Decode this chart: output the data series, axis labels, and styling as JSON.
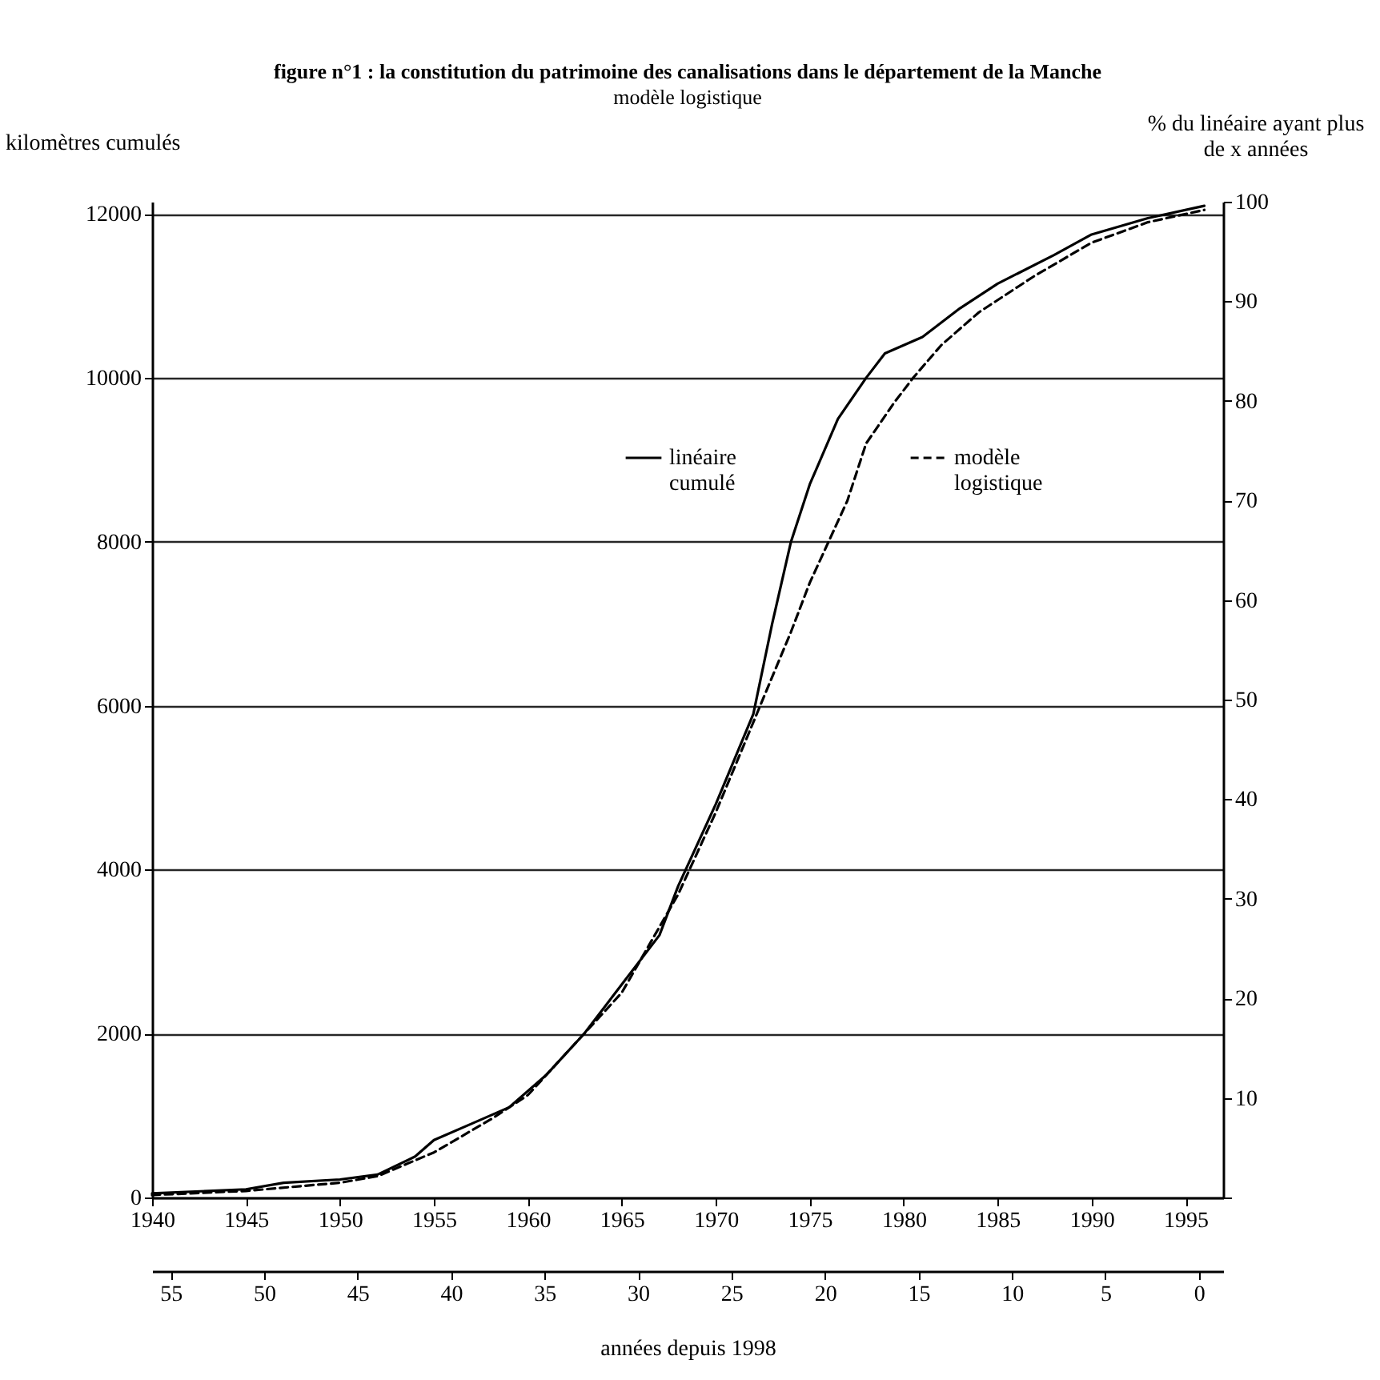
{
  "chart_data": {
    "type": "line",
    "title": "figure n°1 : la constitution du patrimoine des canalisations dans le département de la Manche",
    "subtitle": "modèle logistique",
    "ylabel": "kilomètres cumulés",
    "y2label": "% du linéaire ayant plus\nde x années",
    "x2label": "années depuis 1998",
    "series": [
      {
        "name": "linéaire cumulé",
        "color": "#000000",
        "line_style": "solid",
        "x": [
          1940,
          1945,
          1947,
          1950,
          1952,
          1954,
          1955,
          1957,
          1959,
          1961,
          1963,
          1965,
          1967,
          1968,
          1970,
          1972,
          1973,
          1974,
          1975,
          1976.5,
          1978,
          1979,
          1981,
          1983,
          1985,
          1988,
          1990,
          1993,
          1996
        ],
        "values": [
          50,
          100,
          180,
          220,
          280,
          500,
          700,
          900,
          1100,
          1500,
          2000,
          2600,
          3200,
          3800,
          4800,
          5900,
          7000,
          8000,
          8700,
          9500,
          10000,
          10300,
          10500,
          10850,
          11150,
          11500,
          11750,
          11950,
          12100
        ]
      },
      {
        "name": "modèle logistique",
        "color": "#000000",
        "line_style": "dashed",
        "x": [
          1940,
          1945,
          1950,
          1952,
          1955,
          1958,
          1960,
          1963,
          1965,
          1968,
          1970,
          1972,
          1974,
          1975,
          1977,
          1978,
          1979.5,
          1980.5,
          1982,
          1984,
          1987,
          1990,
          1993,
          1996
        ],
        "values": [
          30,
          80,
          180,
          260,
          550,
          950,
          1250,
          2000,
          2500,
          3700,
          4700,
          5800,
          6900,
          7500,
          8500,
          9200,
          9700,
          10000,
          10400,
          10800,
          11250,
          11650,
          11900,
          12050
        ]
      }
    ],
    "xlim": [
      1940,
      1997
    ],
    "xticks": [
      1940,
      1945,
      1950,
      1955,
      1960,
      1965,
      1970,
      1975,
      1980,
      1985,
      1990,
      1995
    ],
    "x2lim": [
      56,
      -1.3
    ],
    "x2ticks": [
      55,
      50,
      45,
      40,
      35,
      30,
      25,
      20,
      15,
      10,
      5,
      0
    ],
    "ylim": [
      0,
      12150
    ],
    "yticks": [
      0,
      2000,
      4000,
      6000,
      8000,
      10000,
      12000
    ],
    "y2lim": [
      0,
      100
    ],
    "y2ticks": [
      {
        "value": 0,
        "label": null
      },
      10,
      20,
      30,
      40,
      50,
      60,
      70,
      80,
      90,
      100
    ],
    "grid": "y",
    "legend": "top",
    "marker": "none"
  }
}
